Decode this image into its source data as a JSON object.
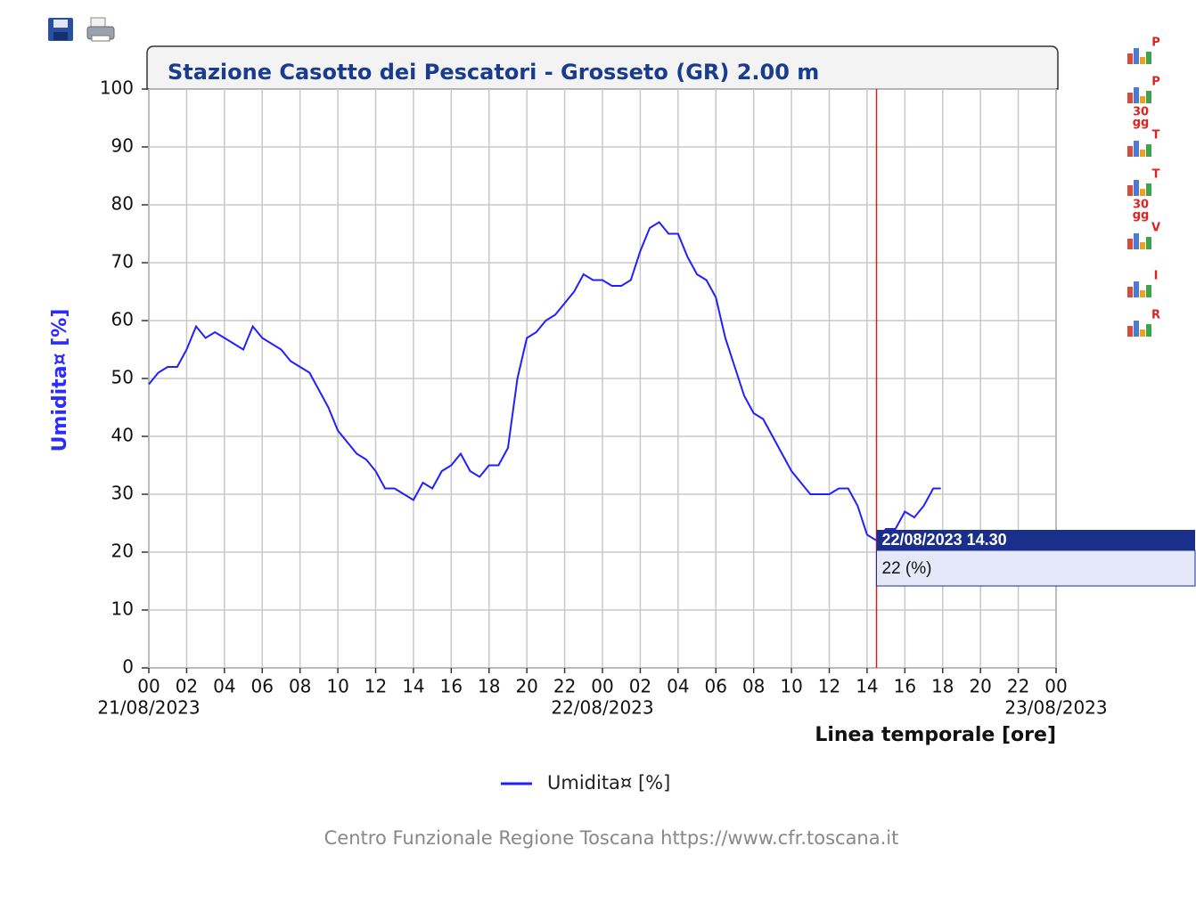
{
  "chart_data": {
    "type": "line",
    "title": "Stazione Casotto dei Pescatori - Grosseto (GR) 2.00 m",
    "y_label": "Umidita¤ [%]",
    "x_label": "Linea temporale [ore]",
    "xlim": [
      0,
      48
    ],
    "ylim": [
      0,
      100
    ],
    "yticks": [
      0,
      10,
      20,
      30,
      40,
      50,
      60,
      70,
      80,
      90,
      100
    ],
    "xticks": [
      {
        "value": 0,
        "label": "00"
      },
      {
        "value": 2,
        "label": "02"
      },
      {
        "value": 4,
        "label": "04"
      },
      {
        "value": 6,
        "label": "06"
      },
      {
        "value": 8,
        "label": "08"
      },
      {
        "value": 10,
        "label": "10"
      },
      {
        "value": 12,
        "label": "12"
      },
      {
        "value": 14,
        "label": "14"
      },
      {
        "value": 16,
        "label": "16"
      },
      {
        "value": 18,
        "label": "18"
      },
      {
        "value": 20,
        "label": "20"
      },
      {
        "value": 22,
        "label": "22"
      },
      {
        "value": 24,
        "label": "00"
      },
      {
        "value": 26,
        "label": "02"
      },
      {
        "value": 28,
        "label": "04"
      },
      {
        "value": 30,
        "label": "06"
      },
      {
        "value": 32,
        "label": "08"
      },
      {
        "value": 34,
        "label": "10"
      },
      {
        "value": 36,
        "label": "12"
      },
      {
        "value": 38,
        "label": "14"
      },
      {
        "value": 40,
        "label": "16"
      },
      {
        "value": 42,
        "label": "18"
      },
      {
        "value": 44,
        "label": "20"
      },
      {
        "value": 46,
        "label": "22"
      },
      {
        "value": 48,
        "label": "00"
      }
    ],
    "x_date_labels": [
      {
        "value": 0,
        "label": "21/08/2023"
      },
      {
        "value": 24,
        "label": "22/08/2023"
      },
      {
        "value": 48,
        "label": "23/08/2023"
      }
    ],
    "grid": true,
    "x": [
      0,
      0.5,
      1,
      1.5,
      2,
      2.5,
      3,
      3.5,
      4,
      4.5,
      5,
      5.5,
      6,
      6.5,
      7,
      7.5,
      8,
      8.5,
      9,
      9.5,
      10,
      10.5,
      11,
      11.5,
      12,
      12.5,
      13,
      13.5,
      14,
      14.5,
      15,
      15.5,
      16,
      16.5,
      17,
      17.5,
      18,
      18.5,
      19,
      19.5,
      20,
      20.5,
      21,
      21.5,
      22,
      22.5,
      23,
      23.5,
      24,
      24.5,
      25,
      25.5,
      26,
      26.5,
      27,
      27.5,
      28,
      28.5,
      29,
      29.5,
      30,
      30.5,
      31,
      31.5,
      32,
      32.5,
      33,
      33.5,
      34,
      34.5,
      35,
      35.5,
      36,
      36.5,
      37,
      37.5,
      38,
      38.5,
      39,
      39.5,
      40,
      40.5,
      41,
      41.5,
      41.9
    ],
    "series": [
      {
        "name": "Umidita¤ [%]",
        "color": "#1f1fff",
        "values": [
          49,
          51,
          52,
          52,
          55,
          59,
          57,
          58,
          57,
          56,
          55,
          59,
          57,
          56,
          55,
          53,
          52,
          51,
          48,
          45,
          41,
          39,
          37,
          36,
          34,
          31,
          31,
          30,
          29,
          32,
          31,
          34,
          35,
          37,
          34,
          33,
          35,
          35,
          38,
          50,
          57,
          58,
          60,
          61,
          63,
          65,
          68,
          67,
          67,
          66,
          66,
          67,
          72,
          76,
          77,
          75,
          75,
          71,
          68,
          67,
          64,
          57,
          52,
          47,
          44,
          43,
          40,
          37,
          34,
          32,
          30,
          30,
          30,
          31,
          31,
          28,
          23,
          22,
          24,
          24,
          27,
          26,
          28,
          31,
          31
        ]
      }
    ],
    "tooltip": {
      "x": 38.5,
      "x_label": "22/08/2023 14.30",
      "value": 22,
      "value_label": "22 (%)"
    },
    "side_icons": [
      {
        "letter": "P"
      },
      {
        "letter": "P",
        "days": "30",
        "unit": "gg"
      },
      {
        "letter": "T"
      },
      {
        "letter": "T",
        "days": "30",
        "unit": "gg"
      },
      {
        "letter": "V"
      },
      {
        "letter": "I"
      },
      {
        "letter": "R"
      }
    ],
    "footer": "Centro Funzionale Regione Toscana https://www.cfr.toscana.it"
  }
}
